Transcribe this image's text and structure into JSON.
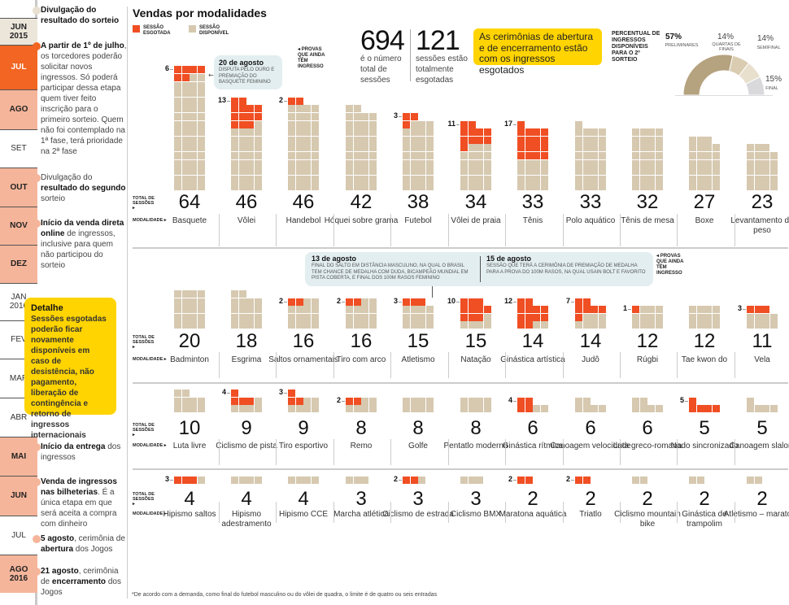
{
  "colors": {
    "sold": "#f04e23",
    "available": "#d6c9b0",
    "highlight": "#ffd400",
    "note_bg": "#e3eef0",
    "timeline_accent": "#f26522",
    "timeline_light": "#f5b59a"
  },
  "timeline": {
    "months": [
      {
        "label": "JUN 2015",
        "style": "pale"
      },
      {
        "label": "JUL",
        "style": "cur"
      },
      {
        "label": "AGO",
        "style": "hl"
      },
      {
        "label": "SET",
        "style": "plain"
      },
      {
        "label": "OUT",
        "style": "hl"
      },
      {
        "label": "NOV",
        "style": "hl"
      },
      {
        "label": "DEZ",
        "style": "hl"
      },
      {
        "label": "JAN 2016",
        "style": "plain"
      },
      {
        "label": "FEV",
        "style": "plain"
      },
      {
        "label": "MAR",
        "style": "plain"
      },
      {
        "label": "ABR",
        "style": "plain"
      },
      {
        "label": "MAI",
        "style": "hl"
      },
      {
        "label": "JUN",
        "style": "hl"
      },
      {
        "label": "JUL",
        "style": "plain"
      },
      {
        "label": "AGO 2016",
        "style": "hl"
      }
    ],
    "events": [
      {
        "bold": "Divulgação do resultado do sorteio",
        "text": ""
      },
      {
        "bold": "A partir de 1º de julho",
        "text": ", os torcedores poderão solicitar novos ingressos. Só poderá participar dessa etapa quem tiver feito inscrição para o primeiro sorteio. Quem não foi contemplado na 1ª fase, terá prioridade na 2ª fase"
      },
      {
        "pre": "Divulgação do ",
        "bold": "resultado do segundo",
        "text": " sorteio"
      },
      {
        "bold": "Início da venda direta online",
        "text": " de ingressos, inclusive para quem não participou do sorteio"
      },
      {
        "bold": "Início da entrega",
        "text": " dos ingressos"
      },
      {
        "bold": "Venda de ingressos nas bilheterias",
        "text": ". É a única etapa em que será aceita a compra com dinheiro"
      },
      {
        "bold": "5 agosto",
        "text": ", cerimônia de ",
        "bold2": "abertura",
        "text2": " dos Jogos"
      },
      {
        "bold": "21 agosto",
        "text": ", cerimônia de ",
        "bold2": "encerramento",
        "text2": " dos Jogos"
      }
    ],
    "detalhe": {
      "title": "Detalhe",
      "body": "Sessões esgotadas poderão ficar novamente disponíveis em caso de desistência, não pagamento, liberação de contingência e retorno de ingressos internacionais"
    }
  },
  "header": {
    "title": "Vendas por modalidades",
    "legend_sold": "SESSÃO ESGOTADA",
    "legend_available": "SESSÃO DISPONÍVEL",
    "total_sessions": "694",
    "total_sessions_text": "é o número total de sessões",
    "sold_out_sessions": "121",
    "sold_out_text": "sessões estão totalmente esgotadas",
    "ceremony_note": "As cerimônias de abertura e de encerramento estão com os ingressos esgotados",
    "provas_label": "PROVAS QUE AINDA TÊM INGRESSO"
  },
  "row_labels": {
    "total": "TOTAL DE SESSÕES ▸",
    "modalidade": "MODALIDADE ▸"
  },
  "notes": {
    "n20": {
      "title": "20 de agosto",
      "body": "DISPUTA PELO OURO E PREMIAÇÃO DO BASQUETE FEMININO"
    },
    "n13": {
      "title": "13 de agosto",
      "body": "FINAL DO SALTO EM DISTÂNCIA MASCULINO, NA QUAL O BRASIL TEM CHANCE DE MEDALHA COM DUDA, BICAMPEÃO MUNDIAL EM PISTA COBERTA, E FINAL DOS 100M RASOS FEMININO"
    },
    "n15": {
      "title": "15 de agosto",
      "body": "SESSÃO QUE TERÁ A CERIMÔNIA DE PREMIAÇÃO DE MEDALHA PARA A PROVA DO 100M RASOS, NA QUAL USAIN BOLT E FAVORITO"
    }
  },
  "pie": {
    "title": "PERCENTUAL DE INGRESSOS DISPONÍVEIS PARA O 2º SORTEIO",
    "slices": [
      {
        "label": "PRELIMINARES",
        "value": 57,
        "color": "#b5a27e"
      },
      {
        "label": "QUARTAS DE FINAIS",
        "value": 14,
        "color": "#d9ccb0"
      },
      {
        "label": "SEMIFINAL",
        "value": 14,
        "color": "#e8dfcc"
      },
      {
        "label": "FINAL",
        "value": 15,
        "color": "#d9d9dc"
      }
    ]
  },
  "chart_data": {
    "type": "waffle",
    "title": "Vendas por modalidades",
    "legend": [
      "Sessão esgotada",
      "Sessão disponível"
    ],
    "rows": [
      [
        {
          "name": "Basquete",
          "total": 64,
          "sold": 6
        },
        {
          "name": "Vôlei",
          "total": 46,
          "sold": 13
        },
        {
          "name": "Handebol",
          "total": 46,
          "sold": 2
        },
        {
          "name": "Hóquei sobre grama",
          "total": 42,
          "sold": 0
        },
        {
          "name": "Futebol",
          "total": 38,
          "sold": 3
        },
        {
          "name": "Vôlei de praia",
          "total": 34,
          "sold": 11
        },
        {
          "name": "Tênis",
          "total": 33,
          "sold": 17
        },
        {
          "name": "Polo aquático",
          "total": 33,
          "sold": 0
        },
        {
          "name": "Tênis de mesa",
          "total": 32,
          "sold": 0
        },
        {
          "name": "Boxe",
          "total": 27,
          "sold": 0
        },
        {
          "name": "Levantamento de peso",
          "total": 23,
          "sold": 0
        }
      ],
      [
        {
          "name": "Badminton",
          "total": 20,
          "sold": 0
        },
        {
          "name": "Esgrima",
          "total": 18,
          "sold": 0
        },
        {
          "name": "Saltos ornamentais",
          "total": 16,
          "sold": 2
        },
        {
          "name": "Tiro com arco",
          "total": 16,
          "sold": 2
        },
        {
          "name": "Atletismo",
          "total": 15,
          "sold": 3
        },
        {
          "name": "Natação",
          "total": 15,
          "sold": 10
        },
        {
          "name": "Ginástica artística",
          "total": 14,
          "sold": 12
        },
        {
          "name": "Judô",
          "total": 14,
          "sold": 7
        },
        {
          "name": "Rúgbi",
          "total": 12,
          "sold": 1
        },
        {
          "name": "Tae kwon do",
          "total": 12,
          "sold": 0
        },
        {
          "name": "Vela",
          "total": 11,
          "sold": 3
        }
      ],
      [
        {
          "name": "Luta livre",
          "total": 10,
          "sold": 0
        },
        {
          "name": "Ciclismo de pista",
          "total": 9,
          "sold": 4
        },
        {
          "name": "Tiro esportivo",
          "total": 9,
          "sold": 3
        },
        {
          "name": "Remo",
          "total": 8,
          "sold": 2
        },
        {
          "name": "Golfe",
          "total": 8,
          "sold": 0
        },
        {
          "name": "Pentatlo moderno",
          "total": 8,
          "sold": 0
        },
        {
          "name": "Ginástica rítmica",
          "total": 6,
          "sold": 4
        },
        {
          "name": "Canoagem velocidade",
          "total": 6,
          "sold": 0
        },
        {
          "name": "Luta greco-romana",
          "total": 6,
          "sold": 0
        },
        {
          "name": "Nado sincronizado",
          "total": 5,
          "sold": 5
        },
        {
          "name": "Canoagem slalom",
          "total": 5,
          "sold": 0
        }
      ],
      [
        {
          "name": "Hipismo saltos",
          "total": 4,
          "sold": 3
        },
        {
          "name": "Hipismo adestramento",
          "total": 4,
          "sold": 0
        },
        {
          "name": "Hipismo CCE",
          "total": 4,
          "sold": 0
        },
        {
          "name": "Marcha atlética",
          "total": 3,
          "sold": 0
        },
        {
          "name": "Ciclismo de estrada",
          "total": 3,
          "sold": 2
        },
        {
          "name": "Ciclismo BMX",
          "total": 3,
          "sold": 0
        },
        {
          "name": "Maratona aquática",
          "total": 2,
          "sold": 2
        },
        {
          "name": "Triatlo",
          "total": 2,
          "sold": 2
        },
        {
          "name": "Ciclismo mountain bike",
          "total": 2,
          "sold": 0
        },
        {
          "name": "Ginástica de trampolim",
          "total": 2,
          "sold": 0
        },
        {
          "name": "Atletismo – maratona",
          "total": 2,
          "sold": 0
        }
      ]
    ]
  },
  "footnote": "*De acordo com a demanda, como final do futebol masculino ou do vôlei de quadra, o limite é de quatro ou seis entradas"
}
